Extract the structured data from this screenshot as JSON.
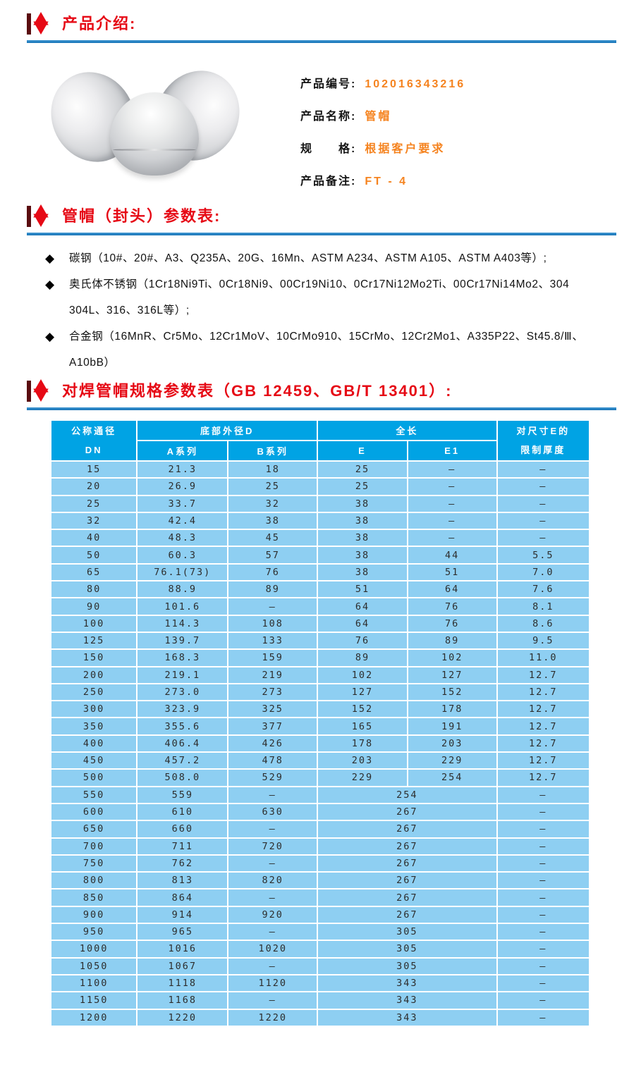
{
  "sections": {
    "intro": {
      "title": "产品介绍:"
    },
    "params": {
      "title": "管帽（封头）参数表:"
    },
    "spec": {
      "title": "对焊管帽规格参数表（GB 12459、GB/T 13401）:"
    }
  },
  "product": {
    "photo": "three-stainless-steel-pipe-caps",
    "fields": [
      {
        "label": "产品编号:",
        "value": "102016343216"
      },
      {
        "label": "产品名称:",
        "value": "管帽"
      },
      {
        "label": "规　　格:",
        "value": "根据客户要求"
      },
      {
        "label": "产品备注:",
        "value": "FT - 4"
      }
    ]
  },
  "materials": [
    {
      "lines": [
        "碳钢（10#、20#、A3、Q235A、20G、16Mn、ASTM A234、ASTM A105、ASTM A403等）;"
      ]
    },
    {
      "lines": [
        "奥氏体不锈钢（1Cr18Ni9Ti、0Cr18Ni9、00Cr19Ni10、0Cr17Ni12Mo2Ti、00Cr17Ni14Mo2、304",
        "304L、316、316L等）;"
      ]
    },
    {
      "lines": [
        "合金钢（16MnR、Cr5Mo、12Cr1MoV、10CrMo910、15CrMo、12Cr2Mo1、A335P22、St45.8/Ⅲ、",
        "A10bB）"
      ]
    }
  ],
  "table": {
    "header": {
      "dn_line1": "公称通径",
      "dn_line2": "DN",
      "d_group": "底部外径D",
      "a_series": "A系列",
      "b_series": "B系列",
      "len_group": "全长",
      "e": "E",
      "e1": "E1",
      "limit_line1": "对尺寸E的",
      "limit_line2": "限制厚度"
    },
    "rows": [
      {
        "dn": "15",
        "a": "21.3",
        "b": "18",
        "e": "25",
        "e1": "–",
        "t": "–"
      },
      {
        "dn": "20",
        "a": "26.9",
        "b": "25",
        "e": "25",
        "e1": "–",
        "t": "–"
      },
      {
        "dn": "25",
        "a": "33.7",
        "b": "32",
        "e": "38",
        "e1": "–",
        "t": "–"
      },
      {
        "dn": "32",
        "a": "42.4",
        "b": "38",
        "e": "38",
        "e1": "–",
        "t": "–"
      },
      {
        "dn": "40",
        "a": "48.3",
        "b": "45",
        "e": "38",
        "e1": "–",
        "t": "–"
      },
      {
        "dn": "50",
        "a": "60.3",
        "b": "57",
        "e": "38",
        "e1": "44",
        "t": "5.5"
      },
      {
        "dn": "65",
        "a": "76.1(73)",
        "b": "76",
        "e": "38",
        "e1": "51",
        "t": "7.0"
      },
      {
        "dn": "80",
        "a": "88.9",
        "b": "89",
        "e": "51",
        "e1": "64",
        "t": "7.6"
      },
      {
        "dn": "90",
        "a": "101.6",
        "b": "–",
        "e": "64",
        "e1": "76",
        "t": "8.1"
      },
      {
        "dn": "100",
        "a": "114.3",
        "b": "108",
        "e": "64",
        "e1": "76",
        "t": "8.6"
      },
      {
        "dn": "125",
        "a": "139.7",
        "b": "133",
        "e": "76",
        "e1": "89",
        "t": "9.5"
      },
      {
        "dn": "150",
        "a": "168.3",
        "b": "159",
        "e": "89",
        "e1": "102",
        "t": "11.0"
      },
      {
        "dn": "200",
        "a": "219.1",
        "b": "219",
        "e": "102",
        "e1": "127",
        "t": "12.7"
      },
      {
        "dn": "250",
        "a": "273.0",
        "b": "273",
        "e": "127",
        "e1": "152",
        "t": "12.7"
      },
      {
        "dn": "300",
        "a": "323.9",
        "b": "325",
        "e": "152",
        "e1": "178",
        "t": "12.7"
      },
      {
        "dn": "350",
        "a": "355.6",
        "b": "377",
        "e": "165",
        "e1": "191",
        "t": "12.7"
      },
      {
        "dn": "400",
        "a": "406.4",
        "b": "426",
        "e": "178",
        "e1": "203",
        "t": "12.7"
      },
      {
        "dn": "450",
        "a": "457.2",
        "b": "478",
        "e": "203",
        "e1": "229",
        "t": "12.7"
      },
      {
        "dn": "500",
        "a": "508.0",
        "b": "529",
        "e": "229",
        "e1": "254",
        "t": "12.7"
      },
      {
        "dn": "550",
        "a": "559",
        "b": "–",
        "e": "254",
        "e1": null,
        "t": "–"
      },
      {
        "dn": "600",
        "a": "610",
        "b": "630",
        "e": "267",
        "e1": null,
        "t": "–"
      },
      {
        "dn": "650",
        "a": "660",
        "b": "–",
        "e": "267",
        "e1": null,
        "t": "–"
      },
      {
        "dn": "700",
        "a": "711",
        "b": "720",
        "e": "267",
        "e1": null,
        "t": "–"
      },
      {
        "dn": "750",
        "a": "762",
        "b": "–",
        "e": "267",
        "e1": null,
        "t": "–"
      },
      {
        "dn": "800",
        "a": "813",
        "b": "820",
        "e": "267",
        "e1": null,
        "t": "–"
      },
      {
        "dn": "850",
        "a": "864",
        "b": "–",
        "e": "267",
        "e1": null,
        "t": "–"
      },
      {
        "dn": "900",
        "a": "914",
        "b": "920",
        "e": "267",
        "e1": null,
        "t": "–"
      },
      {
        "dn": "950",
        "a": "965",
        "b": "–",
        "e": "305",
        "e1": null,
        "t": "–"
      },
      {
        "dn": "1000",
        "a": "1016",
        "b": "1020",
        "e": "305",
        "e1": null,
        "t": "–"
      },
      {
        "dn": "1050",
        "a": "1067",
        "b": "–",
        "e": "305",
        "e1": null,
        "t": "–"
      },
      {
        "dn": "1100",
        "a": "1118",
        "b": "1120",
        "e": "343",
        "e1": null,
        "t": "–"
      },
      {
        "dn": "1150",
        "a": "1168",
        "b": "–",
        "e": "343",
        "e1": null,
        "t": "–"
      },
      {
        "dn": "1200",
        "a": "1220",
        "b": "1220",
        "e": "343",
        "e1": null,
        "t": "–"
      }
    ]
  },
  "icons": {
    "section_star": "six-pointed-star",
    "bullet": "◆"
  },
  "colors": {
    "section_red": "#e60915",
    "rule_blue": "#1572b5",
    "value_orange": "#f5831f",
    "table_header_blue": "#00a3e4",
    "table_row_blue": "#8ecff2",
    "table_text": "#2d2d2d"
  }
}
